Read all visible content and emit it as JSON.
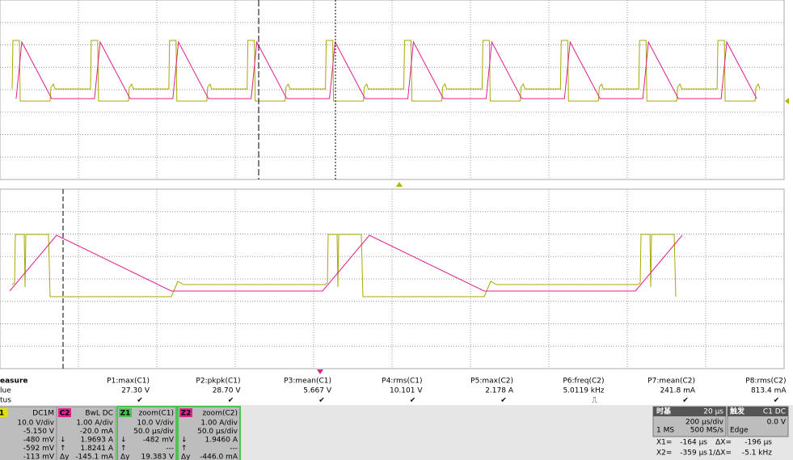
{
  "measurements": {
    "row_labels": [
      "easure",
      "lue",
      "tus"
    ],
    "items": [
      {
        "label": "P1:max(C1)",
        "value": "27.30 V",
        "status": "✔"
      },
      {
        "label": "P2:pkpk(C1)",
        "value": "28.70 V",
        "status": "✔"
      },
      {
        "label": "P3:mean(C1)",
        "value": "5.667 V",
        "status": "✔"
      },
      {
        "label": "P4:rms(C1)",
        "value": "10.101 V",
        "status": "✔"
      },
      {
        "label": "P5:max(C2)",
        "value": "2.178 A",
        "status": "✔"
      },
      {
        "label": "P6:freq(C2)",
        "value": "5.0119 kHz",
        "status": "⎍"
      },
      {
        "label": "P7:mean(C2)",
        "value": "241.8 mA",
        "status": "✔"
      },
      {
        "label": "P8:rms(C2)",
        "value": "813.4 mA",
        "status": "✔"
      }
    ]
  },
  "channels": [
    {
      "tag": "1",
      "mode": "DC1M",
      "lines": [
        {
          "r": "10.0 V/div"
        },
        {
          "r": "-5.150 V"
        },
        {
          "r": "-480 mV"
        },
        {
          "r": "-592 mV"
        },
        {
          "r": "-113 mV"
        }
      ]
    },
    {
      "tag": "C2",
      "mode": "BwL DC",
      "lines": [
        {
          "r": "1.00 A/div"
        },
        {
          "r": "-20.0 mA"
        },
        {
          "l": "↓",
          "r": "1.9693 A"
        },
        {
          "l": "↑",
          "r": "1.8241 A"
        },
        {
          "l": "Δy",
          "r": "-145.1 mA"
        }
      ]
    },
    {
      "tag": "Z1",
      "mode": "zoom(C1)",
      "lines": [
        {
          "r": "10.0 V/div"
        },
        {
          "r": "50.0 µs/div"
        },
        {
          "l": "↓",
          "r": "-482 mV"
        },
        {
          "l": "↑",
          "r": "---"
        },
        {
          "l": "Δy",
          "r": "19.383 V"
        }
      ]
    },
    {
      "tag": "Z2",
      "mode": "zoom(C2)",
      "lines": [
        {
          "r": "1.00 A/div"
        },
        {
          "r": "50.0 µs/div"
        },
        {
          "l": "↓",
          "r": "1.9460 A"
        },
        {
          "l": "↑",
          "r": "---"
        },
        {
          "l": "Δy",
          "r": "-446.0 mA"
        }
      ]
    }
  ],
  "timebase": {
    "title": "时基",
    "delay": "20 µs",
    "div": "200 µs/div",
    "samples": "1 MS",
    "rate": "500 MS/s"
  },
  "trigger": {
    "title": "触发",
    "source": "C1 DC",
    "level": "0.0 V",
    "mode": "Edge"
  },
  "cursors": [
    {
      "label": "X1=",
      "value": "-164 µs",
      "dlabel": "ΔX=",
      "dvalue": "-196 µs"
    },
    {
      "label": "X2=",
      "value": "-359 µs",
      "dlabel": "1/ΔX=",
      "dvalue": "-5.1 kHz"
    }
  ]
}
